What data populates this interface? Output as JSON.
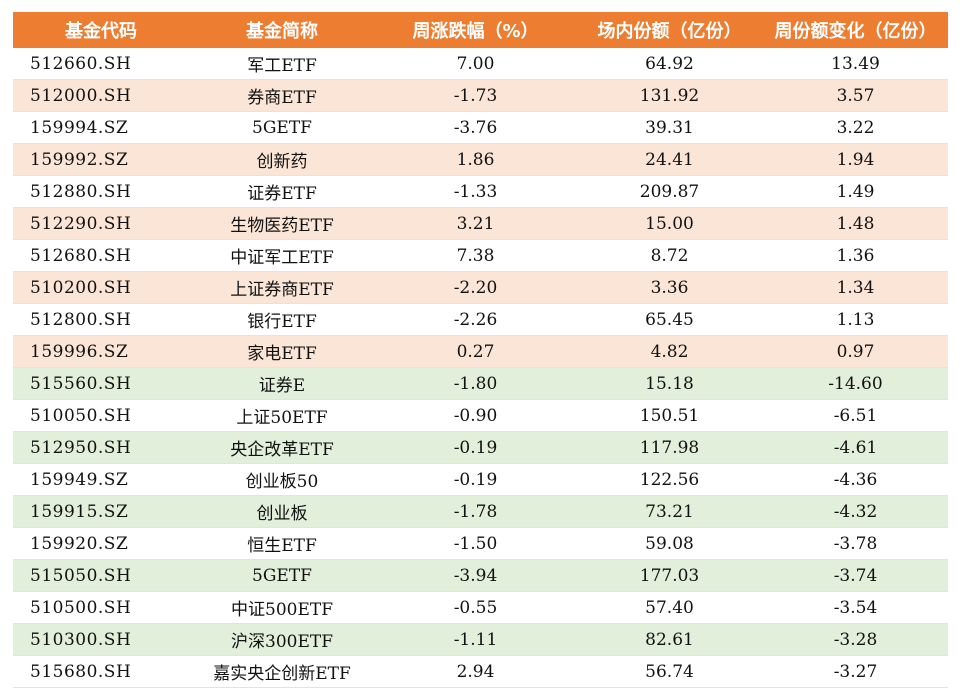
{
  "colors": {
    "header_bg": "#ED7D31",
    "header_text": "#FFFFFF",
    "row_orange": "#FBE5D6",
    "row_green": "#E2EFDA",
    "row_white": "#FFFFFF"
  },
  "table": {
    "headers": [
      "基金代码",
      "基金简称",
      "周涨跌幅（%）",
      "场内份额（亿份）",
      "周份额变化（亿份）"
    ],
    "rows": [
      {
        "code": "512660.SH",
        "name": "军工ETF",
        "change_pct": "7.00",
        "shares": "64.92",
        "share_change": "13.49",
        "tint": "white"
      },
      {
        "code": "512000.SH",
        "name": "券商ETF",
        "change_pct": "-1.73",
        "shares": "131.92",
        "share_change": "3.57",
        "tint": "orange"
      },
      {
        "code": "159994.SZ",
        "name": "5GETF",
        "change_pct": "-3.76",
        "shares": "39.31",
        "share_change": "3.22",
        "tint": "white"
      },
      {
        "code": "159992.SZ",
        "name": "创新药",
        "change_pct": "1.86",
        "shares": "24.41",
        "share_change": "1.94",
        "tint": "orange"
      },
      {
        "code": "512880.SH",
        "name": "证券ETF",
        "change_pct": "-1.33",
        "shares": "209.87",
        "share_change": "1.49",
        "tint": "white"
      },
      {
        "code": "512290.SH",
        "name": "生物医药ETF",
        "change_pct": "3.21",
        "shares": "15.00",
        "share_change": "1.48",
        "tint": "orange"
      },
      {
        "code": "512680.SH",
        "name": "中证军工ETF",
        "change_pct": "7.38",
        "shares": "8.72",
        "share_change": "1.36",
        "tint": "white"
      },
      {
        "code": "510200.SH",
        "name": "上证券商ETF",
        "change_pct": "-2.20",
        "shares": "3.36",
        "share_change": "1.34",
        "tint": "orange"
      },
      {
        "code": "512800.SH",
        "name": "银行ETF",
        "change_pct": "-2.26",
        "shares": "65.45",
        "share_change": "1.13",
        "tint": "white"
      },
      {
        "code": "159996.SZ",
        "name": "家电ETF",
        "change_pct": "0.27",
        "shares": "4.82",
        "share_change": "0.97",
        "tint": "orange"
      },
      {
        "code": "515560.SH",
        "name": "证券E",
        "change_pct": "-1.80",
        "shares": "15.18",
        "share_change": "-14.60",
        "tint": "green"
      },
      {
        "code": "510050.SH",
        "name": "上证50ETF",
        "change_pct": "-0.90",
        "shares": "150.51",
        "share_change": "-6.51",
        "tint": "white"
      },
      {
        "code": "512950.SH",
        "name": "央企改革ETF",
        "change_pct": "-0.19",
        "shares": "117.98",
        "share_change": "-4.61",
        "tint": "green"
      },
      {
        "code": "159949.SZ",
        "name": "创业板50",
        "change_pct": "-0.19",
        "shares": "122.56",
        "share_change": "-4.36",
        "tint": "white"
      },
      {
        "code": "159915.SZ",
        "name": "创业板",
        "change_pct": "-1.78",
        "shares": "73.21",
        "share_change": "-4.32",
        "tint": "green"
      },
      {
        "code": "159920.SZ",
        "name": "恒生ETF",
        "change_pct": "-1.50",
        "shares": "59.08",
        "share_change": "-3.78",
        "tint": "white"
      },
      {
        "code": "515050.SH",
        "name": "5GETF",
        "change_pct": "-3.94",
        "shares": "177.03",
        "share_change": "-3.74",
        "tint": "green"
      },
      {
        "code": "510500.SH",
        "name": "中证500ETF",
        "change_pct": "-0.55",
        "shares": "57.40",
        "share_change": "-3.54",
        "tint": "white"
      },
      {
        "code": "510300.SH",
        "name": "沪深300ETF",
        "change_pct": "-1.11",
        "shares": "82.61",
        "share_change": "-3.28",
        "tint": "green"
      },
      {
        "code": "515680.SH",
        "name": "嘉实央企创新ETF",
        "change_pct": "2.94",
        "shares": "56.74",
        "share_change": "-3.27",
        "tint": "white"
      }
    ]
  }
}
